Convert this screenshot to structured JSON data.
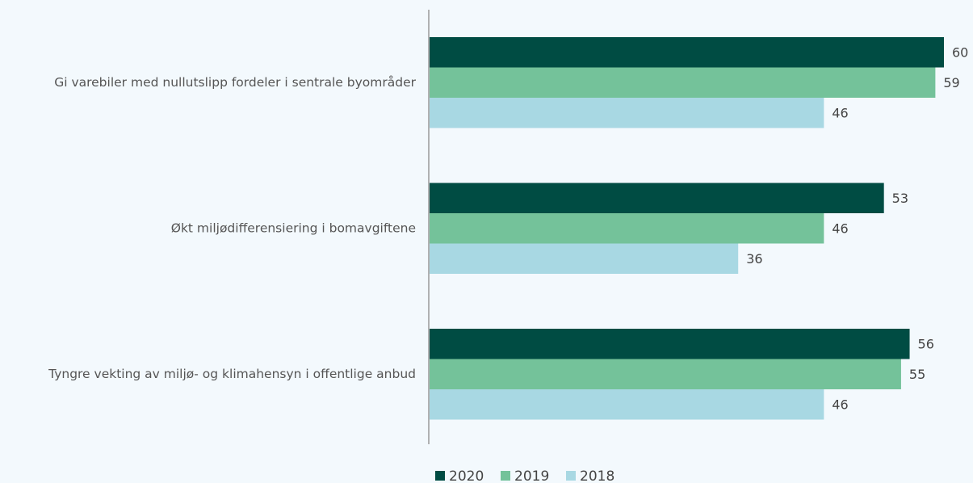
{
  "chart_data": {
    "type": "hbar",
    "categories": [
      "Gi varebiler med nullutslipp fordeler i sentrale byområder",
      "Økt miljødifferensiering i bomavgiftene",
      "Tyngre vekting av miljø- og klimahensyn i offentlige anbud"
    ],
    "series": [
      {
        "name": "2020",
        "color": "#004c43",
        "values": [
          60,
          53,
          56
        ]
      },
      {
        "name": "2019",
        "color": "#74c29a",
        "values": [
          59,
          46,
          55
        ]
      },
      {
        "name": "2018",
        "color": "#a8d8e3",
        "values": [
          46,
          36,
          46
        ]
      }
    ]
  }
}
